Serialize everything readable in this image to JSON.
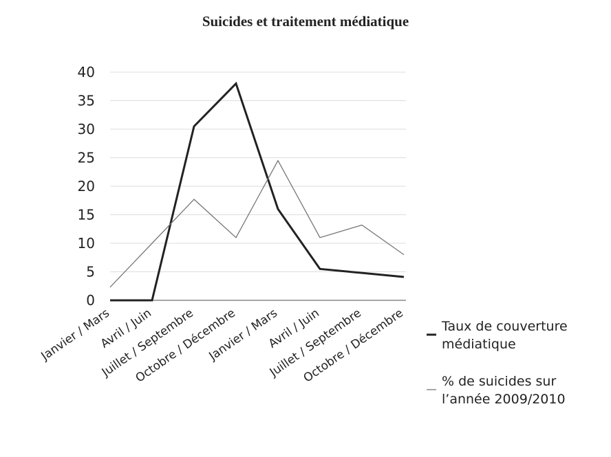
{
  "chart_data": {
    "type": "line",
    "title": "Suicides et traitement médiatique",
    "categories": [
      "Janvier / Mars",
      "Avril / Juin",
      "Juillet / Septembre",
      "Octobre / Décembre",
      "Janvier / Mars",
      "Avril / Juin",
      "Juillet / Septembre",
      "Octobre / Décembre"
    ],
    "series": [
      {
        "name": "Taux de couverture médiatique",
        "color": "#222222",
        "values": [
          0,
          0,
          30.5,
          38,
          16,
          5.5,
          4.8,
          4.1
        ]
      },
      {
        "name": "% de suicides sur l’année 2009/2010",
        "color": "#777777",
        "values": [
          2.3,
          10,
          17.7,
          11,
          24.5,
          11,
          13.2,
          8
        ]
      }
    ],
    "ylim": [
      0,
      40
    ],
    "yticks": [
      0,
      5,
      10,
      15,
      20,
      25,
      30,
      35,
      40
    ],
    "grid": true,
    "legend": "right"
  }
}
